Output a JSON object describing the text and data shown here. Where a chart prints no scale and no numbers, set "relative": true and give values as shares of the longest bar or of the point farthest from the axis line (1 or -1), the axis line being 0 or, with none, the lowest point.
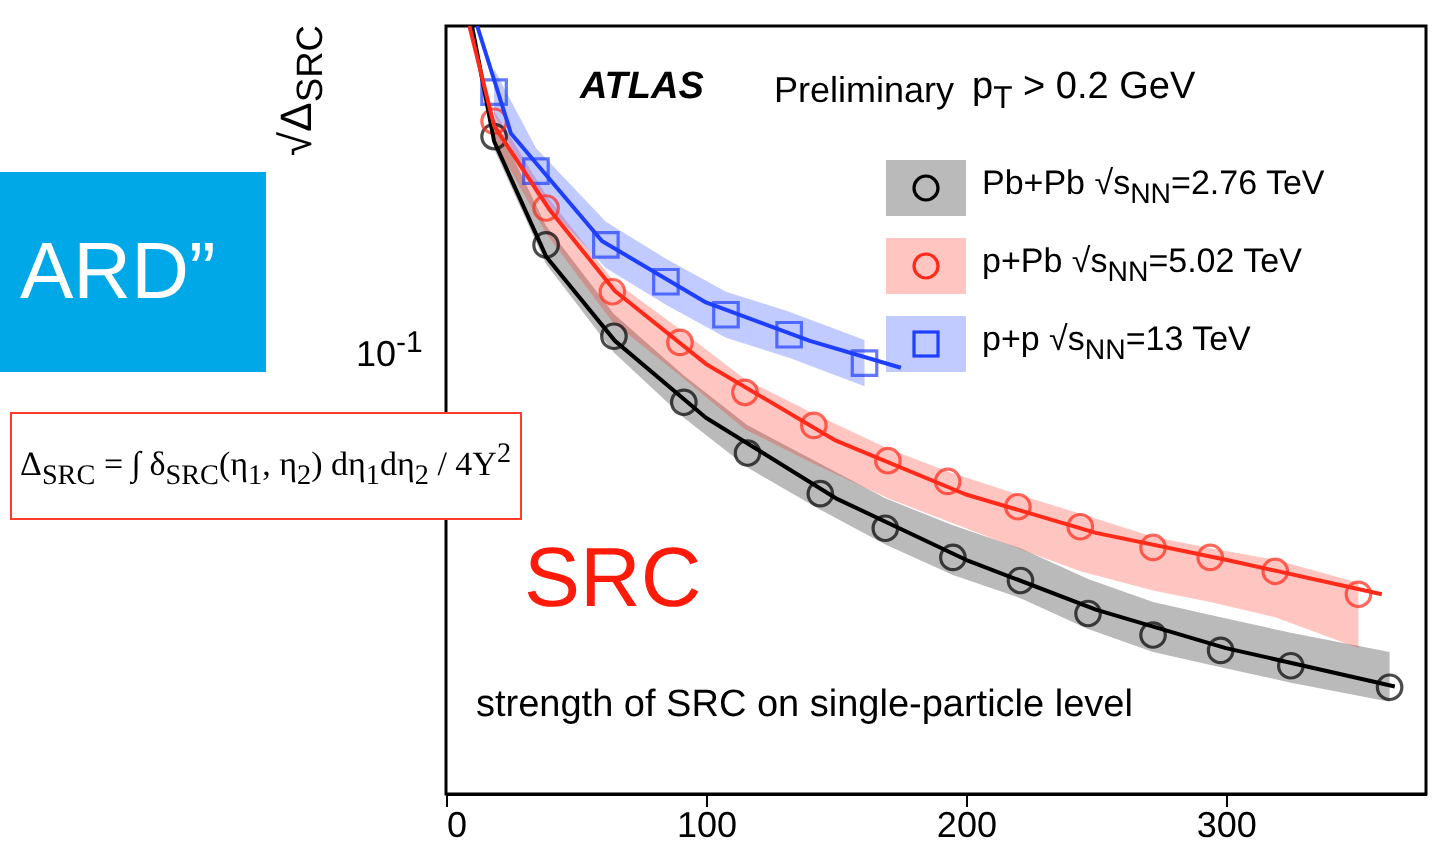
{
  "chart_data": {
    "type": "scatter",
    "relative": true,
    "ylabel": "√Δ$_{SRC}$",
    "xlim": [
      0,
      377
    ],
    "xticks": [
      0,
      100,
      200,
      300
    ],
    "legend": "top right",
    "grid": false,
    "annotations": [
      "ATLAS",
      "Preliminary",
      "p$_{T}$ > 0.2 GeV",
      "SRC",
      "strength of SRC on single-particle level",
      "10$^{-1}$",
      "ARD”",
      "Δ$_{SRC}$ = ∫ δ$_{SRC}$(η$_{1}$, η$_{2}$) dη$_{1}$dη$_{2}$ / 4Y$^{2}$"
    ],
    "series": [
      {
        "name": "Pb+Pb √s$_{NN}$=2.76 TeV",
        "color": "#000000",
        "marker": "circle",
        "x": [
          18.5,
          38.5,
          64.6,
          91.5,
          116,
          144,
          169,
          195,
          221,
          247,
          272,
          298,
          325,
          363
        ],
        "values": [
          0.856,
          0.715,
          0.596,
          0.51,
          0.444,
          0.391,
          0.346,
          0.308,
          0.278,
          0.235,
          0.207,
          0.187,
          0.167,
          0.139
        ],
        "upper": [
          0.88,
          0.74,
          0.625,
          0.545,
          0.48,
          0.43,
          0.385,
          0.35,
          0.32,
          0.28,
          0.25,
          0.23,
          0.21,
          0.185
        ],
        "lower": [
          0.84,
          0.69,
          0.575,
          0.49,
          0.425,
          0.37,
          0.325,
          0.285,
          0.255,
          0.215,
          0.185,
          0.165,
          0.145,
          0.12
        ]
      },
      {
        "name": "p+Pb √s$_{NN}$=5.02 TeV",
        "color": "#ff2a1a",
        "marker": "circle",
        "x": [
          18.5,
          38.5,
          64,
          90,
          115,
          141.5,
          170,
          193,
          220,
          244,
          272,
          294,
          319,
          351
        ],
        "values": [
          0.876,
          0.763,
          0.654,
          0.588,
          0.523,
          0.48,
          0.434,
          0.407,
          0.374,
          0.348,
          0.321,
          0.308,
          0.29,
          0.26
        ],
        "upper": [
          0.89,
          0.78,
          0.67,
          0.605,
          0.54,
          0.495,
          0.45,
          0.42,
          0.39,
          0.365,
          0.335,
          0.32,
          0.305,
          0.275
        ],
        "lower": [
          0.85,
          0.73,
          0.615,
          0.545,
          0.475,
          0.43,
          0.385,
          0.355,
          0.32,
          0.29,
          0.265,
          0.25,
          0.23,
          0.19
        ]
      },
      {
        "name": "p+p √s$_{NN}$=13 TeV",
        "color": "#1f3fff",
        "marker": "square",
        "x": [
          18.5,
          34.6,
          61.5,
          84.6,
          107.7,
          132,
          161
        ],
        "values": [
          0.914,
          0.811,
          0.715,
          0.667,
          0.624,
          0.598,
          0.561
        ],
        "upper": [
          0.944,
          0.841,
          0.745,
          0.697,
          0.654,
          0.628,
          0.591
        ],
        "lower": [
          0.884,
          0.781,
          0.685,
          0.637,
          0.594,
          0.568,
          0.531
        ]
      },
      {
        "type": "line",
        "color": "#000000",
        "x": [
          10,
          18.5,
          38.5,
          65,
          100,
          150,
          200,
          250,
          300,
          365
        ],
        "values": [
          1,
          0.85,
          0.7,
          0.59,
          0.49,
          0.385,
          0.305,
          0.24,
          0.19,
          0.14
        ]
      },
      {
        "type": "line",
        "color": "#ff2a1a",
        "x": [
          9,
          18.5,
          40,
          65,
          100,
          150,
          200,
          250,
          300,
          360
        ],
        "values": [
          1,
          0.87,
          0.76,
          0.655,
          0.56,
          0.46,
          0.39,
          0.34,
          0.305,
          0.26
        ]
      },
      {
        "type": "line",
        "color": "#1f3fff",
        "x": [
          12,
          25,
          60,
          100,
          140,
          175
        ],
        "values": [
          1,
          0.86,
          0.72,
          0.64,
          0.59,
          0.555
        ]
      }
    ]
  }
}
